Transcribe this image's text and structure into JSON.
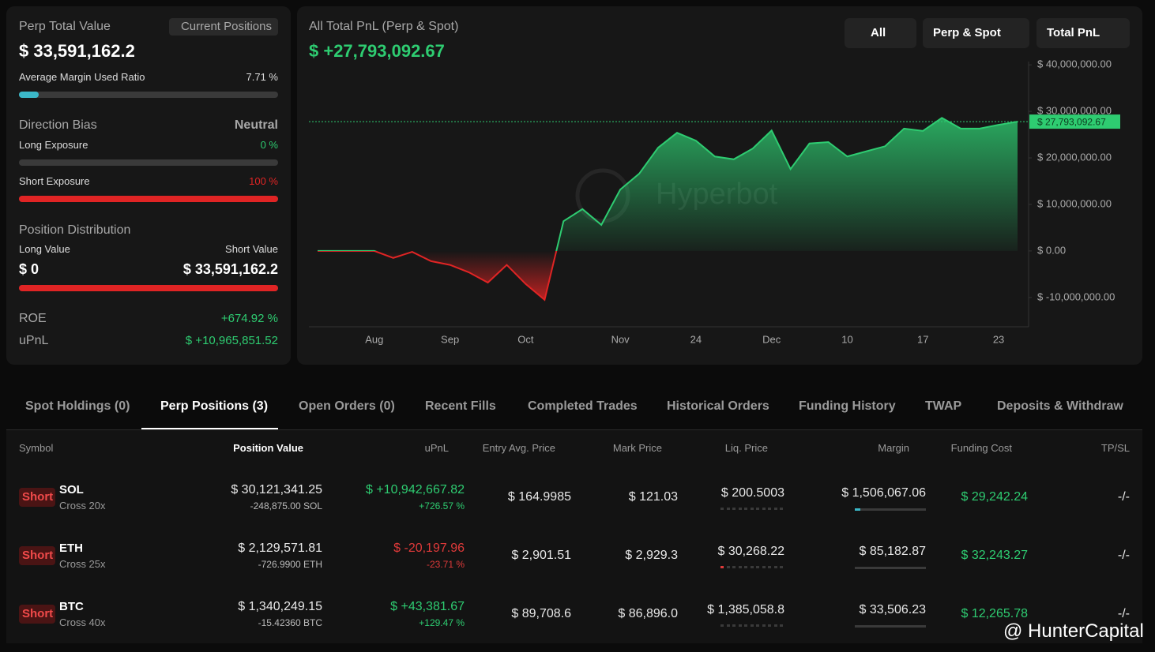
{
  "summary": {
    "perp_total_value_label": "Perp Total Value",
    "perp_total_value": "$ 33,591,162.2",
    "current_positions_button": "Current Positions",
    "margin_ratio_label": "Average Margin Used Ratio",
    "margin_ratio": {
      "value": 7.71,
      "label": "7.71 %"
    },
    "direction_bias_label": "Direction Bias",
    "direction_bias": "Neutral",
    "long_exposure_label": "Long Exposure",
    "long_exposure": {
      "value": 0,
      "label": "0 %"
    },
    "short_exposure_label": "Short Exposure",
    "short_exposure": {
      "value": 100,
      "label": "100 %"
    },
    "position_distribution_label": "Position Distribution",
    "long_value_label": "Long Value",
    "short_value_label": "Short Value",
    "long_value": "$ 0",
    "short_value": "$ 33,591,162.2",
    "roe_label": "ROE",
    "roe": "+674.92 %",
    "upnl_label": "uPnL",
    "upnl": "$ +10,965,851.52"
  },
  "controls": [
    "All",
    "Perp & Spot",
    "Total PnL"
  ],
  "chart_data": {
    "type": "area",
    "title": "All Total PnL (Perp & Spot)",
    "subtitle": "$ +27,793,092.67",
    "watermark": "Hyperbot",
    "categories": [
      null,
      null,
      null,
      "Aug",
      null,
      null,
      null,
      "Sep",
      null,
      null,
      null,
      "Oct",
      null,
      null,
      null,
      null,
      "Nov",
      null,
      null,
      null,
      "24",
      null,
      null,
      null,
      "Dec",
      null,
      null,
      null,
      "10",
      null,
      null,
      null,
      "17",
      null,
      null,
      null,
      "23",
      null
    ],
    "values": [
      0,
      0,
      0,
      0,
      -1500000,
      -200000,
      -2200000,
      -3000000,
      -4600000,
      -6800000,
      -3000000,
      -7100000,
      -10500000,
      6400000,
      9000000,
      5600000,
      13200000,
      16600000,
      22200000,
      25400000,
      23700000,
      20300000,
      19700000,
      22000000,
      25900000,
      17600000,
      23100000,
      23400000,
      20300000,
      21400000,
      22500000,
      26300000,
      25800000,
      28600000,
      26300000,
      26300000,
      27100000,
      27793092.67
    ],
    "positive_color": "#2ecc71",
    "negative_color": "#e02424",
    "current": {
      "value": 27793092.67,
      "label": "$ 27,793,092.67"
    },
    "ylim": [
      -16300000,
      40700000
    ],
    "yticks": [
      {
        "value": -10000000,
        "label": "$ -10,000,000.00"
      },
      {
        "value": 0,
        "label": "$ 0.00"
      },
      {
        "value": 10000000,
        "label": "$ 10,000,000.00"
      },
      {
        "value": 20000000,
        "label": "$ 20,000,000.00"
      },
      {
        "value": 30000000,
        "label": "$ 30,000,000.00"
      },
      {
        "value": 40000000,
        "label": "$ 40,000,000.00"
      }
    ]
  },
  "tabs": [
    "Spot Holdings (0)",
    "Perp Positions (3)",
    "Open Orders (0)",
    "Recent Fills",
    "Completed Trades",
    "Historical Orders",
    "Funding History",
    "TWAP",
    "Deposits & Withdraw"
  ],
  "table": {
    "columns": [
      "Symbol",
      "Position Value",
      "uPnL",
      "Entry Avg. Price",
      "Mark Price",
      "Liq. Price",
      "Margin",
      "Funding Cost",
      "TP/SL"
    ],
    "rows": [
      {
        "side": "Short",
        "symbol": "SOL",
        "leverage": "Cross 20x",
        "position_value": "$ 30,121,341.25",
        "size": "-248,875.00 SOL",
        "upnl": "$ +10,942,667.82",
        "upnl_pct": "+726.57 %",
        "upnl_color": "#2ecc71",
        "entry": "$ 164.9985",
        "mark": "$ 121.03",
        "liq": "$ 200.5003",
        "margin": "$ 1,506,067.06",
        "funding": "$ 29,242.24",
        "tpsl": "-/-"
      },
      {
        "side": "Short",
        "symbol": "ETH",
        "leverage": "Cross 25x",
        "position_value": "$ 2,129,571.81",
        "size": "-726.9900 ETH",
        "upnl": "$ -20,197.96",
        "upnl_pct": "-23.71 %",
        "upnl_color": "#e03a3a",
        "entry": "$ 2,901.51",
        "mark": "$ 2,929.3",
        "liq": "$ 30,268.22",
        "margin": "$ 85,182.87",
        "funding": "$ 32,243.27",
        "tpsl": "-/-"
      },
      {
        "side": "Short",
        "symbol": "BTC",
        "leverage": "Cross 40x",
        "position_value": "$ 1,340,249.15",
        "size": "-15.42360 BTC",
        "upnl": "$ +43,381.67",
        "upnl_pct": "+129.47 %",
        "upnl_color": "#2ecc71",
        "entry": "$ 89,708.6",
        "mark": "$ 86,896.0",
        "liq": "$ 1,385,058.8",
        "margin": "$ 33,506.23",
        "funding": "$ 12,265.78",
        "tpsl": "-/-"
      }
    ]
  },
  "credit": "@ HunterCapital"
}
